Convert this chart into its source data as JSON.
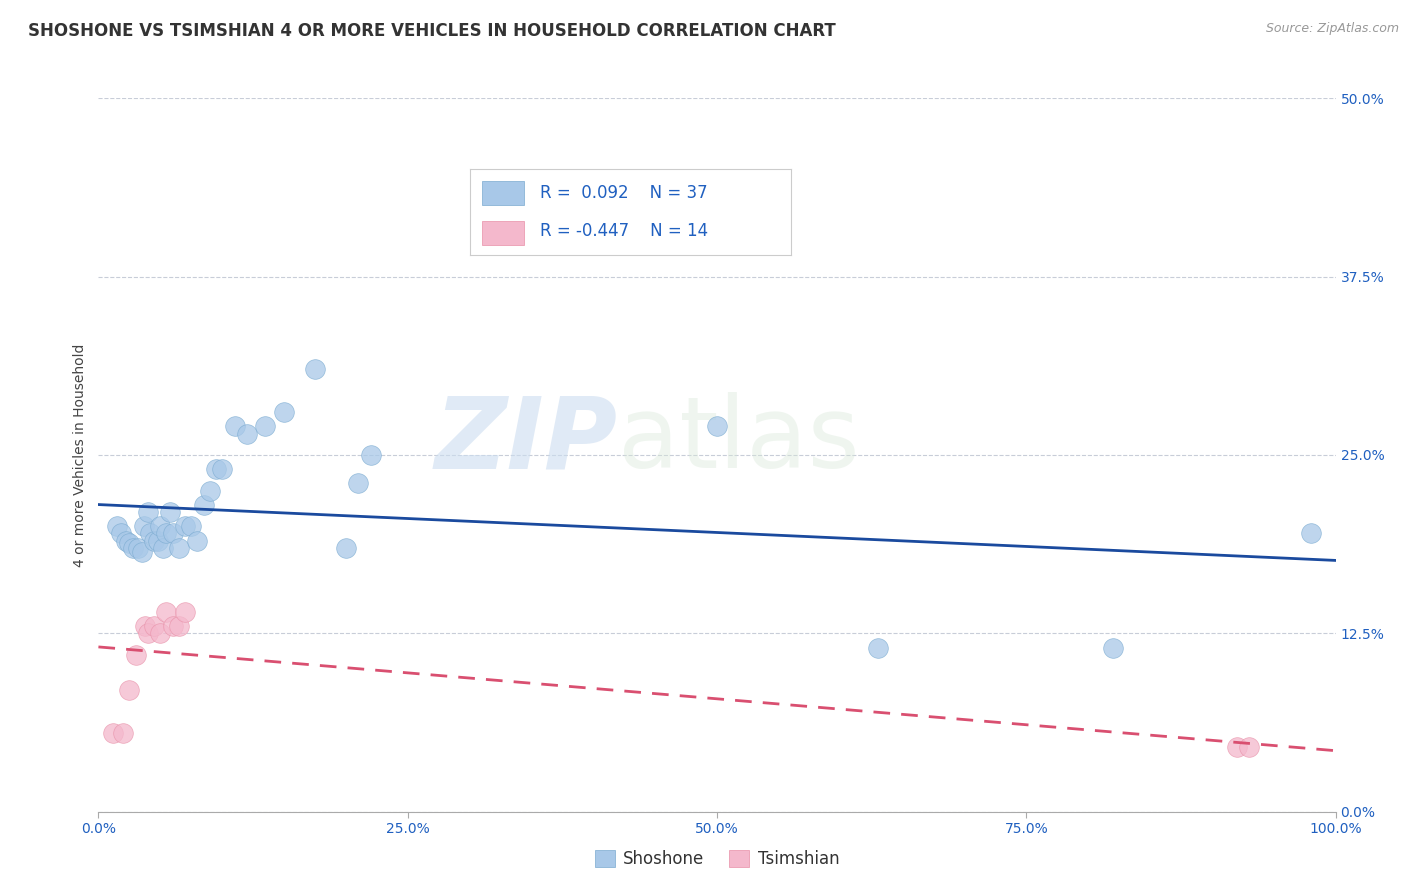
{
  "title": "SHOSHONE VS TSIMSHIAN 4 OR MORE VEHICLES IN HOUSEHOLD CORRELATION CHART",
  "source_text": "Source: ZipAtlas.com",
  "ylabel": "4 or more Vehicles in Household",
  "watermark_zip": "ZIP",
  "watermark_atlas": "atlas",
  "shoshone_r": 0.092,
  "shoshone_n": 37,
  "tsimshian_r": -0.447,
  "tsimshian_n": 14,
  "shoshone_color": "#a8c8e8",
  "shoshone_edge_color": "#7aaad0",
  "shoshone_line_color": "#1a4a9e",
  "tsimshian_color": "#f4b8cc",
  "tsimshian_edge_color": "#e890a8",
  "tsimshian_line_color": "#d94f70",
  "background_color": "#ffffff",
  "grid_color": "#c8cdd8",
  "xlim": [
    0.0,
    1.0
  ],
  "ylim": [
    0.0,
    0.5
  ],
  "x_ticks": [
    0.0,
    0.25,
    0.5,
    0.75,
    1.0
  ],
  "x_tick_labels": [
    "0.0%",
    "25.0%",
    "50.0%",
    "75.0%",
    "100.0%"
  ],
  "y_ticks": [
    0.0,
    0.125,
    0.25,
    0.375,
    0.5
  ],
  "y_tick_labels_right": [
    "0.0%",
    "12.5%",
    "25.0%",
    "37.5%",
    "50.0%"
  ],
  "shoshone_x": [
    0.015,
    0.018,
    0.022,
    0.025,
    0.028,
    0.032,
    0.035,
    0.037,
    0.04,
    0.042,
    0.045,
    0.048,
    0.05,
    0.052,
    0.055,
    0.058,
    0.06,
    0.065,
    0.07,
    0.075,
    0.08,
    0.085,
    0.09,
    0.095,
    0.1,
    0.11,
    0.12,
    0.135,
    0.15,
    0.175,
    0.2,
    0.21,
    0.22,
    0.5,
    0.63,
    0.82,
    0.98
  ],
  "shoshone_y": [
    0.2,
    0.195,
    0.19,
    0.188,
    0.185,
    0.185,
    0.182,
    0.2,
    0.21,
    0.195,
    0.19,
    0.19,
    0.2,
    0.185,
    0.195,
    0.21,
    0.195,
    0.185,
    0.2,
    0.2,
    0.19,
    0.215,
    0.225,
    0.24,
    0.24,
    0.27,
    0.265,
    0.27,
    0.28,
    0.31,
    0.185,
    0.23,
    0.25,
    0.27,
    0.115,
    0.115,
    0.195
  ],
  "tsimshian_x": [
    0.012,
    0.02,
    0.025,
    0.03,
    0.038,
    0.04,
    0.045,
    0.05,
    0.055,
    0.06,
    0.065,
    0.07,
    0.92,
    0.93
  ],
  "tsimshian_y": [
    0.055,
    0.055,
    0.085,
    0.11,
    0.13,
    0.125,
    0.13,
    0.125,
    0.14,
    0.13,
    0.13,
    0.14,
    0.045,
    0.045
  ],
  "legend_label_shoshone": "Shoshone",
  "legend_label_tsimshian": "Tsimshian",
  "title_fontsize": 12,
  "source_fontsize": 9,
  "axis_label_fontsize": 10,
  "tick_fontsize": 10,
  "legend_fontsize": 12
}
